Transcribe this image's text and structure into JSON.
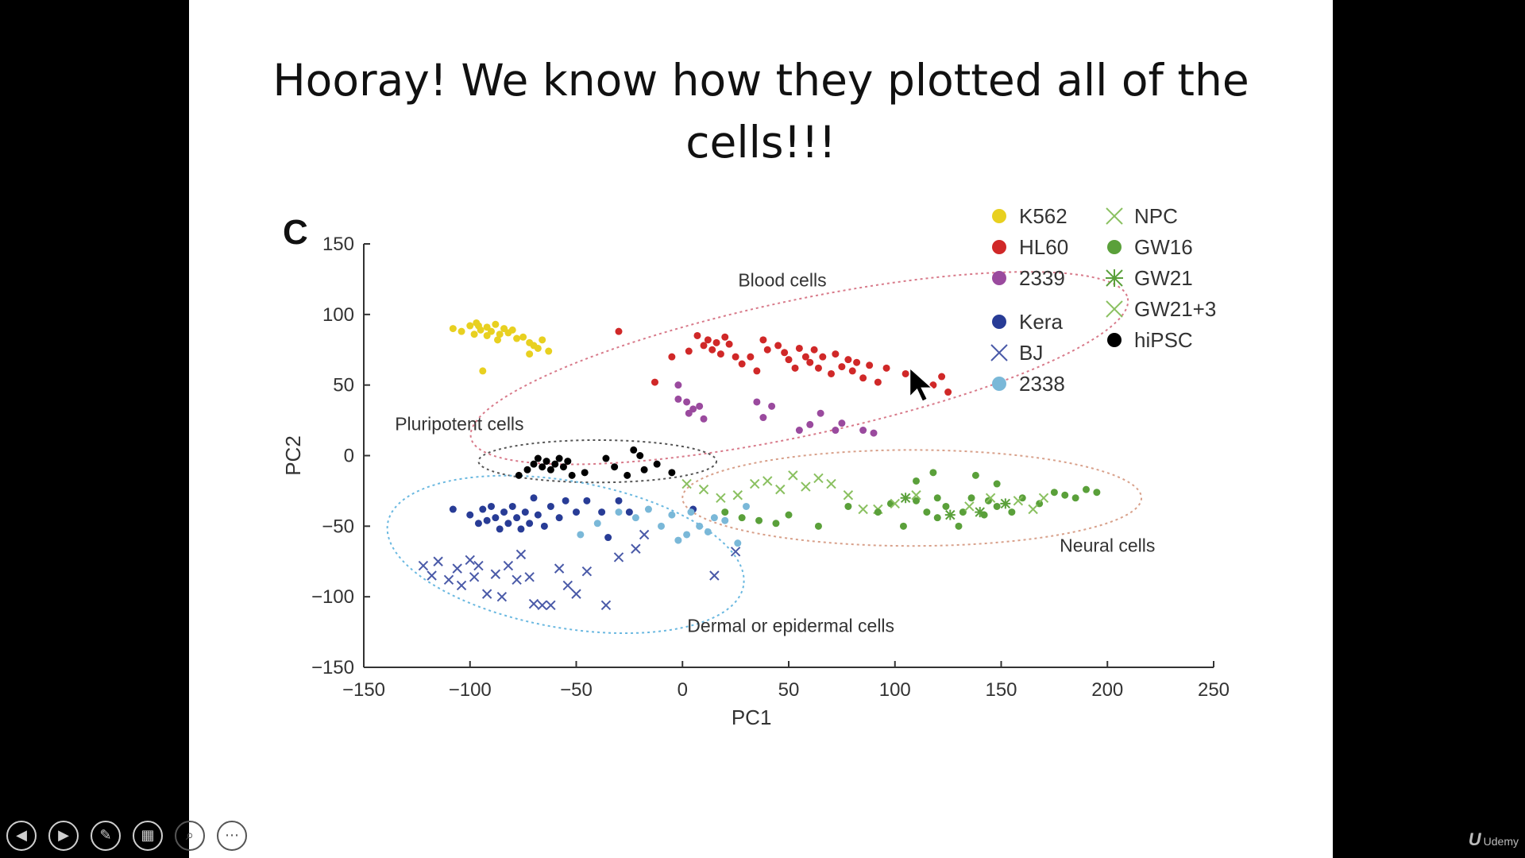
{
  "slide": {
    "title": "Hooray!  We know how they plotted all of the\ncells!!!",
    "panel_letter": "C"
  },
  "controls": [
    {
      "name": "previous-slide-button",
      "glyph": "◀"
    },
    {
      "name": "next-slide-button",
      "glyph": "▶"
    },
    {
      "name": "pen-tool-button",
      "glyph": "✎"
    },
    {
      "name": "see-all-slides-button",
      "glyph": "▦"
    },
    {
      "name": "zoom-button",
      "glyph": "⌕"
    },
    {
      "name": "more-options-button",
      "glyph": "⋯"
    }
  ],
  "watermark": {
    "logo": "U",
    "text": "Udemy"
  },
  "chart_data": {
    "type": "scatter",
    "xlabel": "PC1",
    "ylabel": "PC2",
    "xlim": [
      -150,
      250
    ],
    "ylim": [
      -150,
      150
    ],
    "xticks": [
      -150,
      -100,
      -50,
      0,
      50,
      100,
      150,
      200,
      250
    ],
    "yticks": [
      -150,
      -100,
      -50,
      0,
      50,
      100,
      150
    ],
    "grid": false,
    "legend_position": "top-right",
    "legend_columns": [
      [
        {
          "name": "K562",
          "marker": "dot",
          "color": "#e8d020"
        },
        {
          "name": "HL60",
          "marker": "dot",
          "color": "#d02828"
        },
        {
          "name": "2339",
          "marker": "dot",
          "color": "#9a4a9e"
        },
        {
          "name": "",
          "marker": "gap"
        },
        {
          "name": "Kera",
          "marker": "dot",
          "color": "#283c96"
        },
        {
          "name": "BJ",
          "marker": "x",
          "color": "#4a5aa8"
        },
        {
          "name": "2338",
          "marker": "dot",
          "color": "#7ab8d8"
        }
      ],
      [
        {
          "name": "NPC",
          "marker": "x",
          "color": "#8ac060"
        },
        {
          "name": "GW16",
          "marker": "dot",
          "color": "#5aa03a"
        },
        {
          "name": "GW21",
          "marker": "asterisk",
          "color": "#5aa03a"
        },
        {
          "name": "GW21+3",
          "marker": "x",
          "color": "#8ac060"
        },
        {
          "name": "hiPSC",
          "marker": "dot",
          "color": "#000000"
        }
      ]
    ],
    "clusters": [
      {
        "label": "Blood cells",
        "color": "#d87a8a",
        "cx": 55,
        "cy": 62,
        "rx": 158,
        "ry": 48,
        "angle": -12,
        "label_x": 47,
        "label_y": 120
      },
      {
        "label": "Pluripotent cells",
        "color": "#555555",
        "cx": -40,
        "cy": -4,
        "rx": 56,
        "ry": 15,
        "angle": 0,
        "label_x": -105,
        "label_y": 18
      },
      {
        "label": "Neural cells",
        "color": "#d8a08a",
        "cx": 108,
        "cy": -30,
        "rx": 108,
        "ry": 34,
        "angle": 0,
        "label_x": 200,
        "label_y": -68
      },
      {
        "label": "Dermal or epidermal cells",
        "color": "#6ab8e0",
        "cx": -55,
        "cy": -70,
        "rx": 85,
        "ry": 52,
        "angle": 10,
        "label_x": 51,
        "label_y": -125
      }
    ],
    "series": [
      {
        "name": "K562",
        "marker": "dot",
        "color": "#e8d020",
        "points": [
          [
            -108,
            90
          ],
          [
            -104,
            88
          ],
          [
            -100,
            92
          ],
          [
            -97,
            94
          ],
          [
            -95,
            89
          ],
          [
            -92,
            91
          ],
          [
            -90,
            88
          ],
          [
            -88,
            93
          ],
          [
            -86,
            86
          ],
          [
            -84,
            90
          ],
          [
            -82,
            87
          ],
          [
            -80,
            89
          ],
          [
            -78,
            83
          ],
          [
            -75,
            84
          ],
          [
            -72,
            80
          ],
          [
            -70,
            78
          ],
          [
            -68,
            76
          ],
          [
            -66,
            82
          ],
          [
            -92,
            85
          ],
          [
            -87,
            82
          ],
          [
            -98,
            86
          ],
          [
            -94,
            60
          ],
          [
            -72,
            72
          ],
          [
            -63,
            74
          ],
          [
            -96,
            92
          ]
        ]
      },
      {
        "name": "HL60",
        "marker": "dot",
        "color": "#d02828",
        "points": [
          [
            -30,
            88
          ],
          [
            3,
            74
          ],
          [
            7,
            85
          ],
          [
            10,
            78
          ],
          [
            12,
            82
          ],
          [
            14,
            75
          ],
          [
            16,
            80
          ],
          [
            18,
            72
          ],
          [
            20,
            84
          ],
          [
            22,
            79
          ],
          [
            25,
            70
          ],
          [
            28,
            65
          ],
          [
            32,
            70
          ],
          [
            35,
            60
          ],
          [
            38,
            82
          ],
          [
            40,
            75
          ],
          [
            45,
            78
          ],
          [
            48,
            73
          ],
          [
            50,
            68
          ],
          [
            53,
            62
          ],
          [
            55,
            76
          ],
          [
            58,
            70
          ],
          [
            60,
            66
          ],
          [
            62,
            75
          ],
          [
            64,
            62
          ],
          [
            66,
            70
          ],
          [
            70,
            58
          ],
          [
            72,
            72
          ],
          [
            75,
            63
          ],
          [
            78,
            68
          ],
          [
            80,
            60
          ],
          [
            82,
            66
          ],
          [
            85,
            55
          ],
          [
            88,
            64
          ],
          [
            92,
            52
          ],
          [
            96,
            62
          ],
          [
            105,
            58
          ],
          [
            110,
            53
          ],
          [
            118,
            50
          ],
          [
            122,
            56
          ],
          [
            125,
            45
          ],
          [
            -13,
            52
          ],
          [
            -5,
            70
          ]
        ]
      },
      {
        "name": "2339",
        "marker": "dot",
        "color": "#9a4a9e",
        "points": [
          [
            -2,
            50
          ],
          [
            -2,
            40
          ],
          [
            2,
            38
          ],
          [
            5,
            33
          ],
          [
            3,
            30
          ],
          [
            8,
            35
          ],
          [
            10,
            26
          ],
          [
            35,
            38
          ],
          [
            38,
            27
          ],
          [
            42,
            35
          ],
          [
            55,
            18
          ],
          [
            60,
            22
          ],
          [
            65,
            30
          ],
          [
            72,
            18
          ],
          [
            75,
            23
          ],
          [
            85,
            18
          ],
          [
            90,
            16
          ]
        ]
      },
      {
        "name": "hiPSC",
        "marker": "dot",
        "color": "#000000",
        "points": [
          [
            -77,
            -14
          ],
          [
            -73,
            -10
          ],
          [
            -70,
            -6
          ],
          [
            -68,
            -2
          ],
          [
            -66,
            -8
          ],
          [
            -64,
            -4
          ],
          [
            -62,
            -10
          ],
          [
            -60,
            -6
          ],
          [
            -58,
            -2
          ],
          [
            -56,
            -8
          ],
          [
            -54,
            -4
          ],
          [
            -52,
            -14
          ],
          [
            -46,
            -12
          ],
          [
            -36,
            -2
          ],
          [
            -32,
            -8
          ],
          [
            -26,
            -14
          ],
          [
            -20,
            0
          ],
          [
            -18,
            -10
          ],
          [
            -12,
            -6
          ],
          [
            -5,
            -12
          ],
          [
            -23,
            4
          ]
        ]
      },
      {
        "name": "Kera",
        "marker": "dot",
        "color": "#283c96",
        "points": [
          [
            -108,
            -38
          ],
          [
            -100,
            -42
          ],
          [
            -96,
            -48
          ],
          [
            -94,
            -38
          ],
          [
            -92,
            -46
          ],
          [
            -90,
            -36
          ],
          [
            -88,
            -44
          ],
          [
            -86,
            -52
          ],
          [
            -84,
            -40
          ],
          [
            -82,
            -48
          ],
          [
            -80,
            -36
          ],
          [
            -78,
            -44
          ],
          [
            -76,
            -52
          ],
          [
            -74,
            -40
          ],
          [
            -72,
            -48
          ],
          [
            -70,
            -30
          ],
          [
            -68,
            -42
          ],
          [
            -65,
            -50
          ],
          [
            -62,
            -36
          ],
          [
            -58,
            -44
          ],
          [
            -55,
            -32
          ],
          [
            -50,
            -40
          ],
          [
            -45,
            -32
          ],
          [
            -38,
            -40
          ],
          [
            -30,
            -32
          ],
          [
            -25,
            -40
          ],
          [
            5,
            -38
          ],
          [
            -35,
            -58
          ]
        ]
      },
      {
        "name": "BJ",
        "marker": "x",
        "color": "#4a5aa8",
        "points": [
          [
            -122,
            -78
          ],
          [
            -118,
            -85
          ],
          [
            -115,
            -75
          ],
          [
            -110,
            -88
          ],
          [
            -106,
            -80
          ],
          [
            -104,
            -92
          ],
          [
            -100,
            -74
          ],
          [
            -98,
            -86
          ],
          [
            -96,
            -78
          ],
          [
            -92,
            -98
          ],
          [
            -88,
            -84
          ],
          [
            -85,
            -100
          ],
          [
            -82,
            -78
          ],
          [
            -78,
            -88
          ],
          [
            -76,
            -70
          ],
          [
            -72,
            -86
          ],
          [
            -70,
            -105
          ],
          [
            -66,
            -106
          ],
          [
            -62,
            -106
          ],
          [
            -58,
            -80
          ],
          [
            -54,
            -92
          ],
          [
            -50,
            -98
          ],
          [
            -45,
            -82
          ],
          [
            -36,
            -106
          ],
          [
            -30,
            -72
          ],
          [
            -22,
            -66
          ],
          [
            -18,
            -56
          ],
          [
            15,
            -85
          ],
          [
            25,
            -68
          ]
        ]
      },
      {
        "name": "2338",
        "marker": "dot",
        "color": "#7ab8d8",
        "points": [
          [
            -40,
            -48
          ],
          [
            -30,
            -40
          ],
          [
            -22,
            -44
          ],
          [
            -16,
            -38
          ],
          [
            -10,
            -50
          ],
          [
            -5,
            -42
          ],
          [
            -2,
            -60
          ],
          [
            2,
            -56
          ],
          [
            4,
            -40
          ],
          [
            8,
            -50
          ],
          [
            12,
            -54
          ],
          [
            15,
            -44
          ],
          [
            20,
            -46
          ],
          [
            26,
            -62
          ],
          [
            30,
            -36
          ],
          [
            -48,
            -56
          ]
        ]
      },
      {
        "name": "NPC",
        "marker": "x",
        "color": "#8ac060",
        "points": [
          [
            2,
            -20
          ],
          [
            10,
            -24
          ],
          [
            18,
            -30
          ],
          [
            26,
            -28
          ],
          [
            34,
            -20
          ],
          [
            40,
            -18
          ],
          [
            46,
            -24
          ],
          [
            52,
            -14
          ],
          [
            58,
            -22
          ],
          [
            64,
            -16
          ],
          [
            70,
            -20
          ],
          [
            78,
            -28
          ],
          [
            92,
            -38
          ]
        ]
      },
      {
        "name": "GW16",
        "marker": "dot",
        "color": "#5aa03a",
        "points": [
          [
            20,
            -40
          ],
          [
            28,
            -44
          ],
          [
            36,
            -46
          ],
          [
            44,
            -48
          ],
          [
            50,
            -42
          ],
          [
            64,
            -50
          ],
          [
            78,
            -36
          ],
          [
            92,
            -40
          ],
          [
            98,
            -34
          ],
          [
            104,
            -50
          ],
          [
            110,
            -32
          ],
          [
            115,
            -40
          ],
          [
            120,
            -44
          ],
          [
            124,
            -36
          ],
          [
            130,
            -50
          ],
          [
            136,
            -30
          ],
          [
            142,
            -42
          ],
          [
            148,
            -36
          ],
          [
            155,
            -40
          ],
          [
            160,
            -30
          ],
          [
            168,
            -34
          ],
          [
            175,
            -26
          ],
          [
            180,
            -28
          ],
          [
            185,
            -30
          ],
          [
            190,
            -24
          ],
          [
            195,
            -26
          ],
          [
            110,
            -18
          ],
          [
            118,
            -12
          ],
          [
            138,
            -14
          ],
          [
            148,
            -20
          ],
          [
            120,
            -30
          ],
          [
            132,
            -40
          ],
          [
            144,
            -32
          ]
        ]
      },
      {
        "name": "GW21",
        "marker": "asterisk",
        "color": "#5aa03a",
        "points": [
          [
            126,
            -42
          ],
          [
            140,
            -40
          ],
          [
            152,
            -34
          ],
          [
            105,
            -30
          ]
        ]
      },
      {
        "name": "GW21+3",
        "marker": "x",
        "color": "#8ac060",
        "points": [
          [
            85,
            -38
          ],
          [
            100,
            -34
          ],
          [
            110,
            -28
          ],
          [
            135,
            -36
          ],
          [
            145,
            -30
          ],
          [
            158,
            -32
          ],
          [
            165,
            -38
          ],
          [
            170,
            -30
          ]
        ]
      }
    ]
  }
}
